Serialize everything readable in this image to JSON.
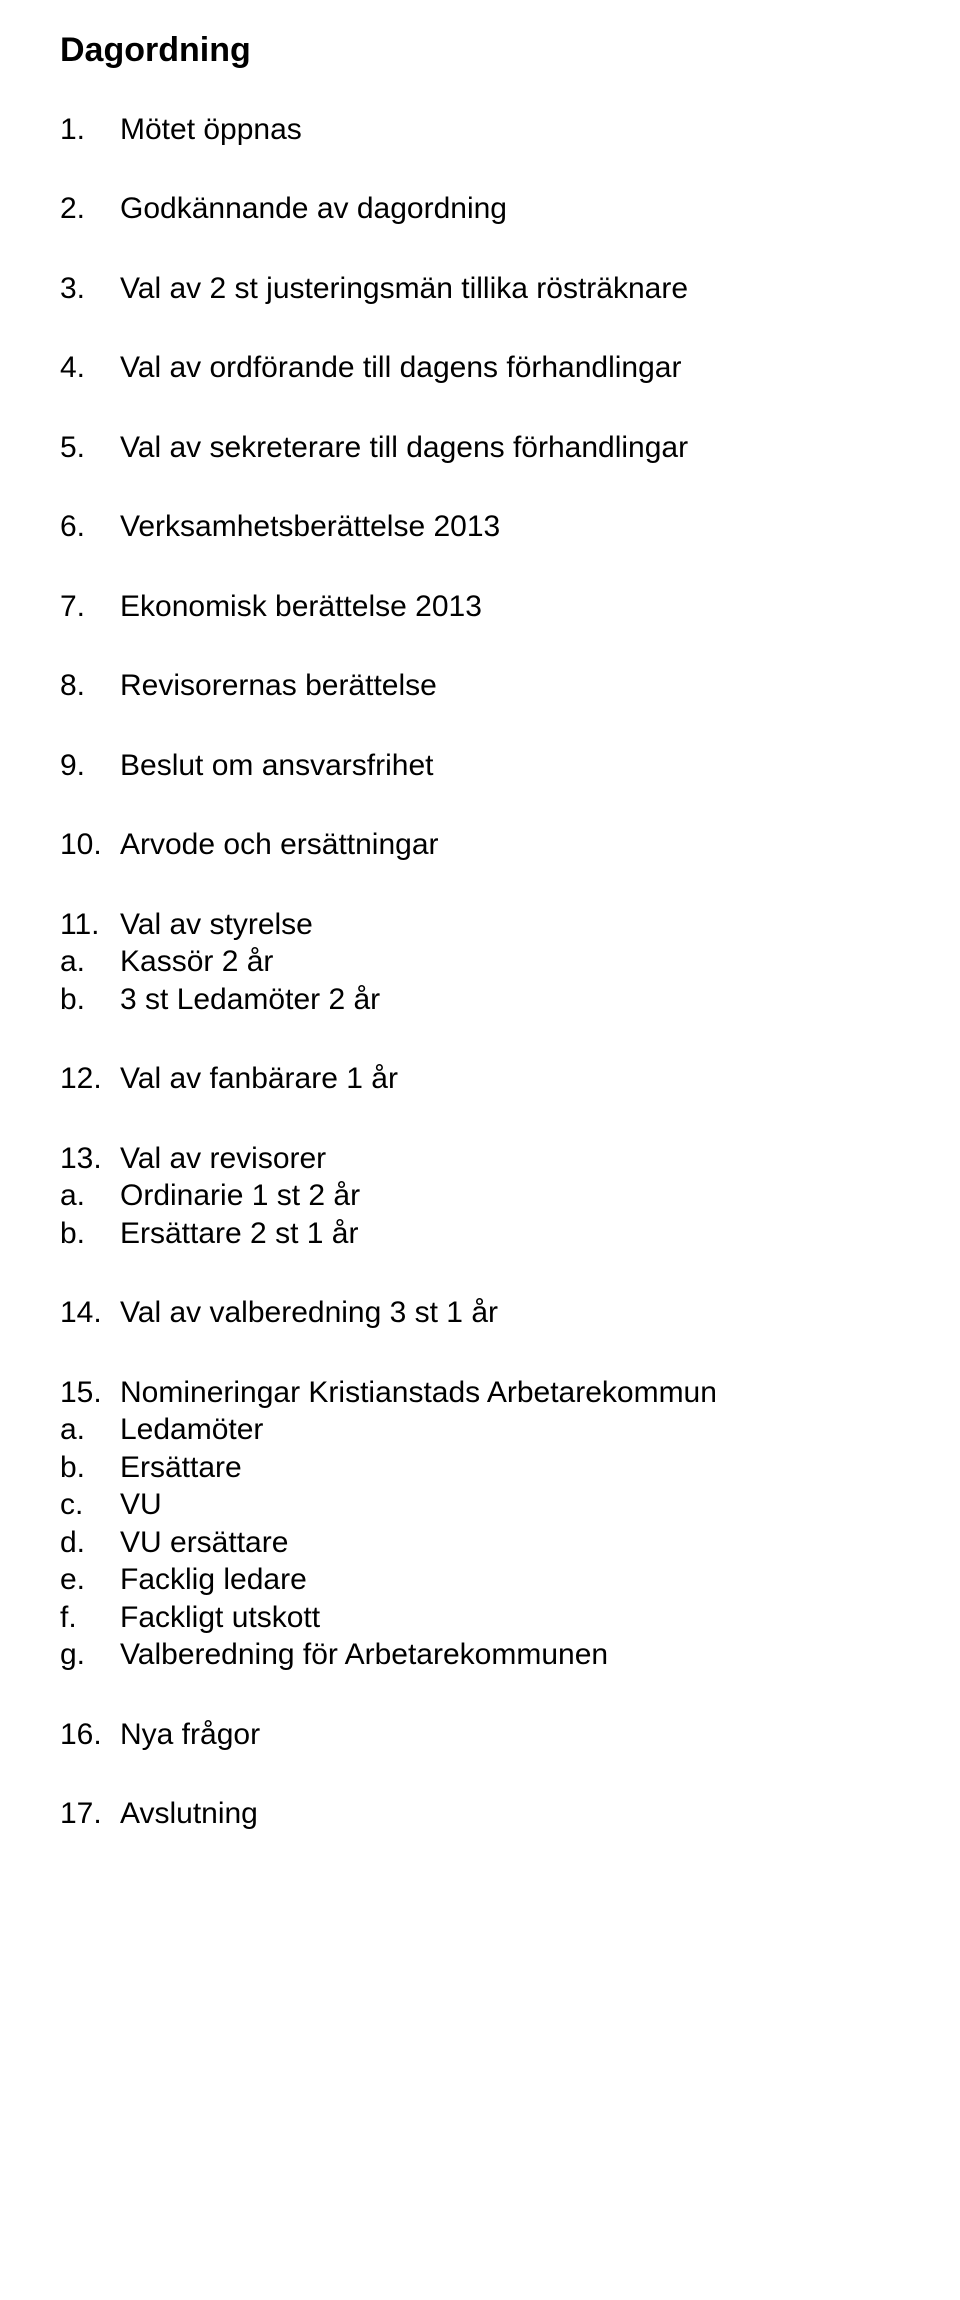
{
  "heading": "Dagordning",
  "rows": [
    {
      "kind": "item",
      "num": "1.",
      "text": "Mötet öppnas",
      "space": true
    },
    {
      "kind": "item",
      "num": "2.",
      "text": "Godkännande av dagordning",
      "space": true
    },
    {
      "kind": "item",
      "num": "3.",
      "text": "Val av 2 st justeringsmän tillika rösträknare",
      "space": true
    },
    {
      "kind": "item",
      "num": "4.",
      "text": "Val av ordförande till dagens förhandlingar",
      "space": true
    },
    {
      "kind": "item",
      "num": "5.",
      "text": "Val av sekreterare till dagens förhandlingar",
      "space": true
    },
    {
      "kind": "item",
      "num": "6.",
      "text": "Verksamhetsberättelse 2013",
      "space": true
    },
    {
      "kind": "item",
      "num": "7.",
      "text": "Ekonomisk berättelse 2013",
      "space": true
    },
    {
      "kind": "item",
      "num": "8.",
      "text": "Revisorernas berättelse",
      "space": true
    },
    {
      "kind": "item",
      "num": "9.",
      "text": "Beslut om ansvarsfrihet",
      "space": true
    },
    {
      "kind": "item",
      "num": "10.",
      "text": "Arvode och ersättningar",
      "space": true
    },
    {
      "kind": "item",
      "num": "11.",
      "text": "Val av styrelse",
      "space": false
    },
    {
      "kind": "sub",
      "letter": "a.",
      "text": "Kassör 2 år",
      "space": false
    },
    {
      "kind": "sub",
      "letter": "b.",
      "text": "3 st Ledamöter 2 år",
      "space": true
    },
    {
      "kind": "item",
      "num": "12.",
      "text": "Val av fanbärare 1 år",
      "space": true
    },
    {
      "kind": "item",
      "num": "13.",
      "text": "Val av revisorer",
      "space": false
    },
    {
      "kind": "sub",
      "letter": "a.",
      "text": "Ordinarie 1 st 2 år",
      "space": false
    },
    {
      "kind": "sub",
      "letter": "b.",
      "text": "Ersättare 2 st 1 år",
      "space": true
    },
    {
      "kind": "item",
      "num": "14.",
      "text": "Val av valberedning 3 st 1 år",
      "space": true
    },
    {
      "kind": "item",
      "num": "15.",
      "text": "Nomineringar Kristianstads Arbetarekommun",
      "space": false
    },
    {
      "kind": "sub",
      "letter": "a.",
      "text": "Ledamöter",
      "space": false
    },
    {
      "kind": "sub",
      "letter": "b.",
      "text": "Ersättare",
      "space": false
    },
    {
      "kind": "sub",
      "letter": "c.",
      "text": "VU",
      "space": false
    },
    {
      "kind": "sub",
      "letter": "d.",
      "text": "VU ersättare",
      "space": false
    },
    {
      "kind": "sub",
      "letter": "e.",
      "text": "Facklig ledare",
      "space": false
    },
    {
      "kind": "sub",
      "letter": "f.",
      "text": "Fackligt utskott",
      "space": false
    },
    {
      "kind": "sub",
      "letter": "g.",
      "text": "Valberedning för Arbetarekommunen",
      "space": true
    },
    {
      "kind": "item",
      "num": "16.",
      "text": "Nya frågor",
      "space": true
    },
    {
      "kind": "item",
      "num": "17.",
      "text": "Avslutning",
      "space": false
    }
  ]
}
